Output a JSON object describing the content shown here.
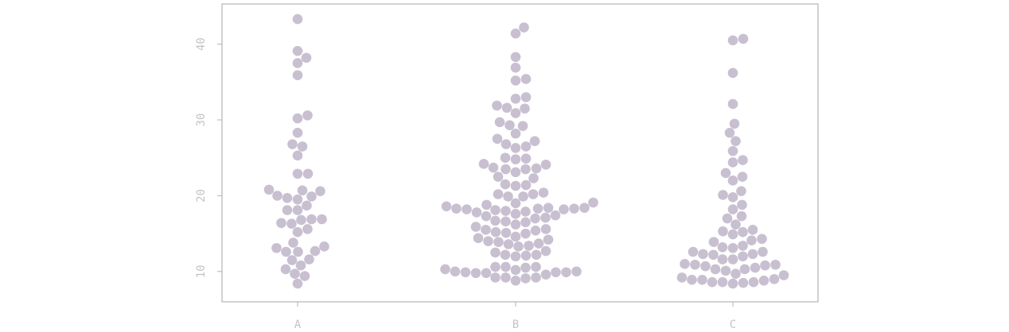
{
  "chart_data": {
    "type": "scatter",
    "subtype": "beeswarm",
    "title": "",
    "xlabel": "",
    "ylabel": "",
    "categories": [
      "A",
      "B",
      "C"
    ],
    "y_ticks": [
      10,
      20,
      30,
      40
    ],
    "ylim": [
      6.0,
      45.3
    ],
    "grid": false,
    "legend": "none",
    "point_color": "#c8c0d0",
    "series": [
      {
        "category": "A",
        "values": [
          43.3,
          39.1,
          38.2,
          37.5,
          35.9,
          30.6,
          30.2,
          28.3,
          26.8,
          26.5,
          25.3,
          22.9,
          22.9,
          20.8,
          20.7,
          20.6,
          20.0,
          19.9,
          19.7,
          19.5,
          18.7,
          18.1,
          18.1,
          16.9,
          16.9,
          16.8,
          16.4,
          16.3,
          15.6,
          15.2,
          13.8,
          13.3,
          13.1,
          12.7,
          12.6,
          12.6,
          11.6,
          11.5,
          10.8,
          10.3,
          9.7,
          9.4,
          8.4
        ]
      },
      {
        "category": "B",
        "values": [
          42.2,
          41.4,
          38.3,
          36.9,
          35.4,
          35.2,
          33.0,
          32.8,
          31.9,
          31.6,
          31.5,
          30.9,
          29.7,
          29.3,
          29.2,
          28.2,
          27.5,
          27.2,
          26.8,
          26.5,
          26.3,
          25.0,
          24.9,
          24.8,
          24.2,
          24.1,
          23.7,
          23.6,
          23.5,
          23.5,
          23.1,
          22.5,
          22.3,
          21.5,
          21.4,
          21.3,
          20.4,
          20.2,
          20.2,
          19.9,
          19.9,
          19.1,
          19.0,
          18.8,
          18.6,
          18.4,
          18.4,
          18.3,
          18.3,
          18.3,
          18.2,
          18.2,
          18.1,
          18.0,
          17.9,
          17.8,
          17.6,
          17.4,
          17.3,
          17.1,
          17.0,
          16.7,
          16.6,
          16.5,
          16.2,
          15.9,
          15.6,
          15.5,
          15.4,
          15.2,
          15.1,
          15.0,
          14.6,
          14.4,
          14.2,
          14.0,
          13.9,
          13.7,
          13.6,
          13.4,
          13.3,
          12.7,
          12.5,
          12.2,
          12.2,
          12.1,
          12.0,
          10.6,
          10.6,
          10.6,
          10.5,
          10.3,
          10.2,
          10.0,
          10.0,
          9.9,
          9.9,
          9.9,
          9.8,
          9.8,
          9.6,
          9.2,
          9.2,
          9.2,
          9.1,
          8.8
        ]
      },
      {
        "category": "C",
        "values": [
          40.7,
          40.5,
          36.2,
          32.1,
          29.5,
          28.3,
          27.2,
          25.9,
          24.7,
          24.4,
          23.0,
          22.5,
          22.0,
          20.6,
          20.1,
          19.8,
          18.8,
          18.2,
          17.3,
          17.0,
          16.2,
          15.5,
          15.3,
          15.2,
          14.9,
          14.3,
          14.1,
          13.9,
          13.4,
          13.2,
          13.1,
          12.6,
          12.6,
          12.3,
          12.3,
          12.2,
          12.0,
          11.6,
          11.6,
          11.0,
          10.9,
          10.9,
          10.8,
          10.7,
          10.5,
          10.3,
          10.3,
          10.1,
          9.7,
          9.5,
          9.2,
          9.0,
          8.9,
          8.9,
          8.8,
          8.6,
          8.6,
          8.6,
          8.5,
          8.4
        ]
      }
    ]
  }
}
